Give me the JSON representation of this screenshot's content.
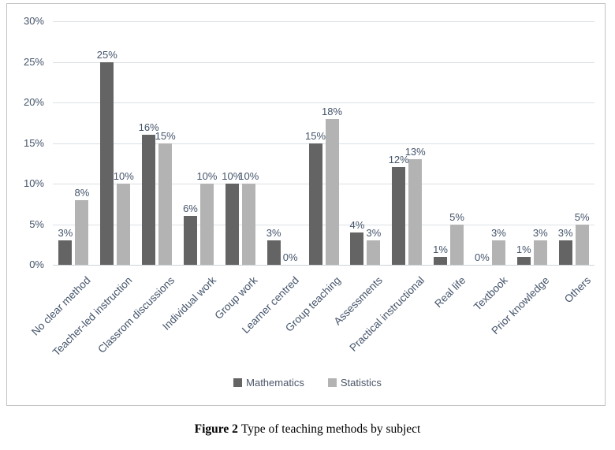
{
  "chart_data": {
    "type": "bar",
    "title": "",
    "xlabel": "",
    "ylabel": "",
    "categories": [
      "No clear method",
      "Teacher-led instruction",
      "Classrom discussions",
      "Individual work",
      "Group work",
      "Learner centred",
      "Group teaching",
      "Assessments",
      "Practical instructional",
      "Real life",
      "Textbook",
      "Prior knowledge",
      "Others"
    ],
    "series": [
      {
        "name": "Mathematics",
        "color": "#646464",
        "values": [
          3,
          25,
          16,
          6,
          10,
          3,
          15,
          4,
          12,
          1,
          0,
          1,
          3
        ]
      },
      {
        "name": "Statistics",
        "color": "#b3b3b3",
        "values": [
          8,
          10,
          15,
          10,
          10,
          0,
          18,
          3,
          13,
          5,
          3,
          3,
          5
        ]
      }
    ],
    "value_suffix": "%",
    "ylim": [
      0,
      30
    ],
    "ytick_labels": [
      "0%",
      "5%",
      "10%",
      "15%",
      "20%",
      "25%",
      "30%"
    ],
    "grid": "horizontal",
    "data_labels": true,
    "legend_position": "bottom"
  },
  "colors": {
    "axis_text": "#44546a",
    "gridline": "#dbe0e4",
    "chart_border": "#c3c3c3"
  },
  "caption": {
    "figure_label": "Figure 2",
    "text": "Type of teaching methods by subject"
  }
}
